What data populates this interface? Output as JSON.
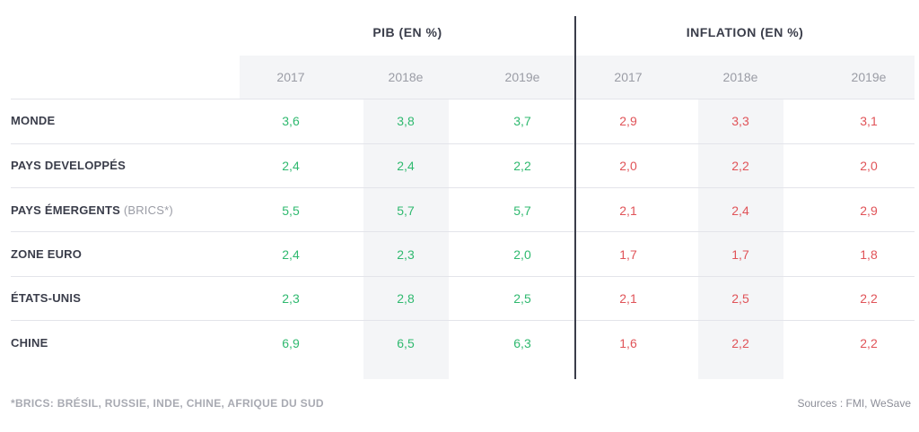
{
  "headers": {
    "gdp_title": "PIB (EN %)",
    "inflation_title": "INFLATION (EN %)"
  },
  "years": [
    "2017",
    "2018e",
    "2019e",
    "2017",
    "2018e",
    "2019e"
  ],
  "rows": [
    {
      "label": "MONDE",
      "label_sub": "",
      "gdp": [
        "3,6",
        "3,8",
        "3,7"
      ],
      "inflation": [
        "2,9",
        "3,3",
        "3,1"
      ]
    },
    {
      "label": "PAYS DEVELOPPÉS",
      "label_sub": "",
      "gdp": [
        "2,4",
        "2,4",
        "2,2"
      ],
      "inflation": [
        "2,0",
        "2,2",
        "2,0"
      ]
    },
    {
      "label": "PAYS ÉMERGENTS",
      "label_sub": "(BRICS*)",
      "gdp": [
        "5,5",
        "5,7",
        "5,7"
      ],
      "inflation": [
        "2,1",
        "2,4",
        "2,9"
      ]
    },
    {
      "label": "ZONE EURO",
      "label_sub": "",
      "gdp": [
        "2,4",
        "2,3",
        "2,0"
      ],
      "inflation": [
        "1,7",
        "1,7",
        "1,8"
      ]
    },
    {
      "label": "ÉTATS-UNIS",
      "label_sub": "",
      "gdp": [
        "2,3",
        "2,8",
        "2,5"
      ],
      "inflation": [
        "2,1",
        "2,5",
        "2,2"
      ]
    },
    {
      "label": "CHINE",
      "label_sub": "",
      "gdp": [
        "6,9",
        "6,5",
        "6,3"
      ],
      "inflation": [
        "1,6",
        "2,2",
        "2,2"
      ]
    }
  ],
  "footnote": "*BRICS: BRÉSIL, RUSSIE, INDE, CHINE, AFRIQUE DU SUD",
  "sources": "Sources : FMI, WeSave",
  "colors": {
    "gdp": "#2fb96f",
    "inflation": "#e05358",
    "header_band": "#f4f5f7",
    "divider": "#3a3d4a"
  }
}
